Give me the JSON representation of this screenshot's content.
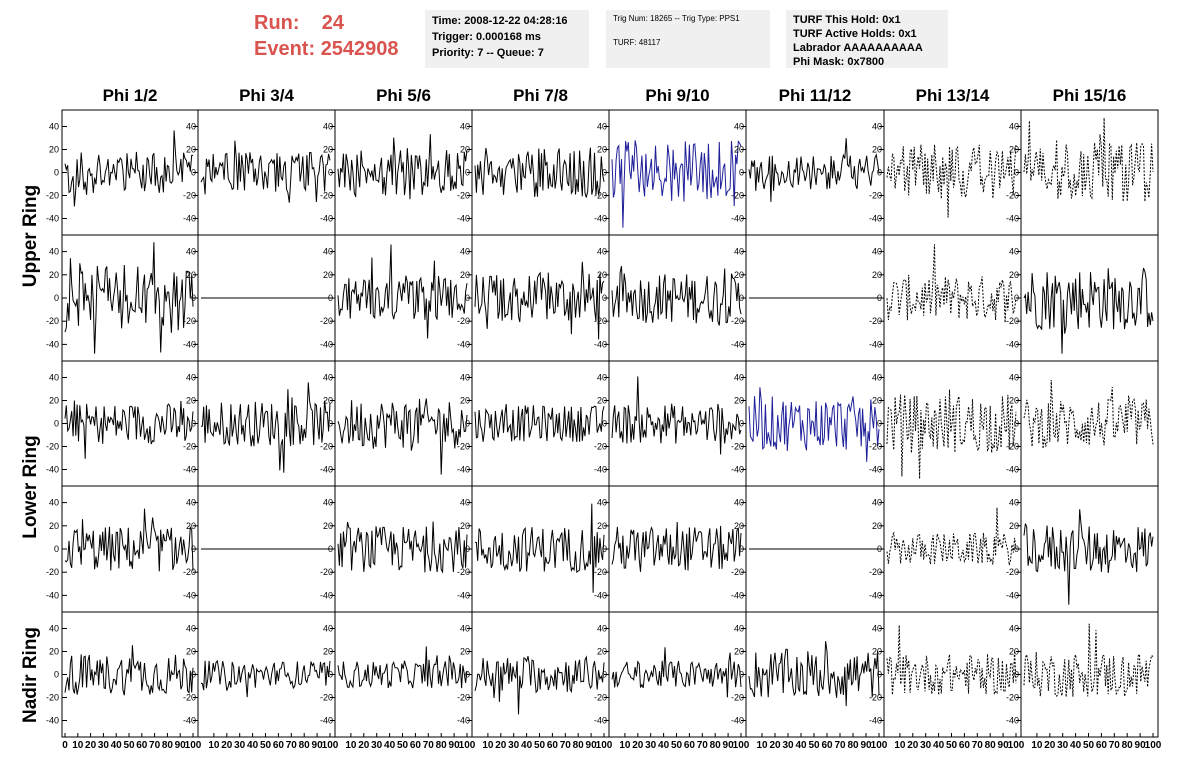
{
  "header": {
    "run_label": "Run:",
    "run_value": "24",
    "event_label": "Event:",
    "event_value": "2542908",
    "info_left": [
      "Time: 2008-12-22 04:28:16",
      "Trigger: 0.000168 ms",
      "Priority: 7 -- Queue: 7"
    ],
    "info_mid": [
      "Trig Num: 18265 -- Trig Type: PPS1",
      "",
      "TURF: 48117"
    ],
    "info_right": [
      "TURF This Hold: 0x1",
      "TURF Active Holds: 0x1",
      "Labrador AAAAAAAAAA",
      "Phi Mask: 0x7800"
    ]
  },
  "colors": {
    "header_red": "#d9534f",
    "trace_black": "#000000",
    "trace_blue": "#1f1f9a",
    "box_bg": "#f0f0f0"
  },
  "chart_data": {
    "type": "line",
    "columns": [
      "Phi 1/2",
      "Phi 3/4",
      "Phi 5/6",
      "Phi 7/8",
      "Phi 9/10",
      "Phi 11/12",
      "Phi 13/14",
      "Phi 15/16"
    ],
    "rows": [
      "Upper Ring",
      "",
      "Lower Ring",
      "",
      "Nadir Ring"
    ],
    "ylim": [
      -50,
      50
    ],
    "yticks": [
      -40,
      -20,
      0,
      20,
      40
    ],
    "xlim": [
      0,
      100
    ],
    "xticks_first": [
      "0",
      "10",
      "20",
      "30",
      "40",
      "50",
      "60",
      "70",
      "80",
      "90",
      "100"
    ],
    "xticks_other": [
      "10",
      "20",
      "30",
      "40",
      "50",
      "60",
      "70",
      "80",
      "90",
      "100"
    ],
    "samples_per_trace": 96,
    "amplitudes": [
      [
        18,
        18,
        20,
        22,
        28,
        16,
        25,
        26
      ],
      [
        30,
        0,
        20,
        22,
        22,
        0,
        20,
        28
      ],
      [
        18,
        20,
        22,
        16,
        18,
        24,
        26,
        22
      ],
      [
        20,
        0,
        20,
        20,
        20,
        0,
        14,
        22
      ],
      [
        18,
        12,
        12,
        16,
        12,
        22,
        18,
        20
      ]
    ],
    "styles": [
      [
        "solid",
        "solid",
        "solid",
        "solid",
        "blue",
        "solid",
        "dashed",
        "dashed"
      ],
      [
        "solid",
        "flat",
        "solid",
        "solid",
        "solid",
        "flat",
        "dashed",
        "solid"
      ],
      [
        "solid",
        "solid",
        "solid",
        "solid",
        "solid",
        "blue",
        "dashed",
        "dashed"
      ],
      [
        "solid",
        "flat",
        "solid",
        "solid",
        "solid",
        "flat",
        "dashed",
        "solid"
      ],
      [
        "solid",
        "solid",
        "solid",
        "solid",
        "solid",
        "solid",
        "dashed",
        "dashed"
      ]
    ]
  }
}
